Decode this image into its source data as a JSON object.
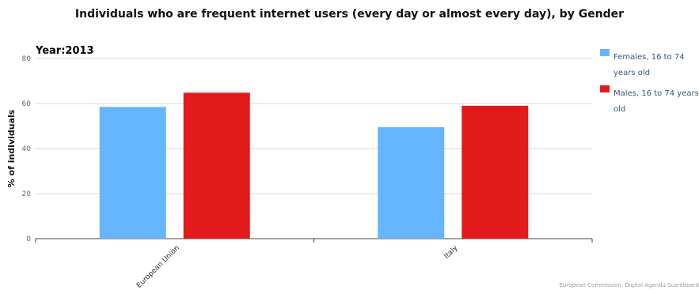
{
  "chart_data": {
    "type": "bar",
    "title": "Individuals who are frequent internet users (every day or almost every day), by Gender",
    "subtitle": "Year:2013",
    "xlabel": "",
    "ylabel": "% of individuals",
    "ylim": [
      0,
      80
    ],
    "yticks": [
      0,
      20,
      40,
      60,
      80
    ],
    "grid": true,
    "legend_position": "right",
    "categories": [
      "European Union",
      "Italy"
    ],
    "series": [
      {
        "name": "Females, 16 to 74 years old",
        "color": "#66b5ff",
        "values": [
          58.5,
          49.5
        ]
      },
      {
        "name": "Males, 16 to 74 years old",
        "color": "#e31a1c",
        "values": [
          64.8,
          59
        ]
      }
    ],
    "source": "European Commission, Digital Agenda Scoreboard"
  }
}
